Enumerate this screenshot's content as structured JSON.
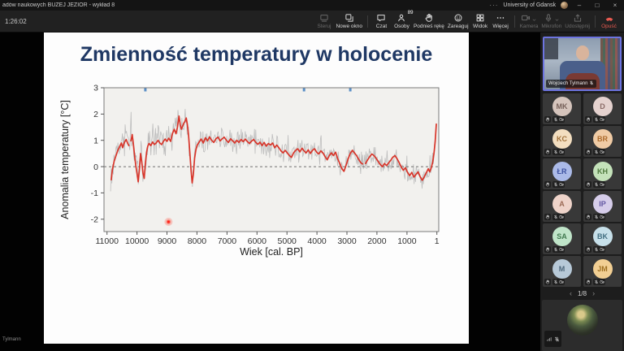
{
  "window": {
    "title": "adów naukowych BUŻEJ JEZIOR - wykład 8",
    "account": "University of Gdansk",
    "more": "···",
    "minimize": "–",
    "maximize": "□",
    "close": "×"
  },
  "toolbar": {
    "timer": "1:26:02",
    "groups": [
      {
        "items": [
          {
            "label": "Steruj",
            "icon": "remote",
            "disabled": true
          },
          {
            "label": "Nowe okno",
            "icon": "new-window"
          }
        ]
      },
      {
        "items": [
          {
            "label": "Czat",
            "icon": "chat"
          },
          {
            "label": "Osoby",
            "icon": "people",
            "badge": "89"
          },
          {
            "label": "Podnieś rękę",
            "icon": "hand"
          },
          {
            "label": "Zareaguj",
            "icon": "react"
          },
          {
            "label": "Widok",
            "icon": "grid"
          },
          {
            "label": "Więcej",
            "icon": "more"
          }
        ]
      },
      {
        "items": [
          {
            "label": "Kamera",
            "icon": "camera",
            "disabled": true,
            "chevron": true
          },
          {
            "label": "Mikrofon",
            "icon": "mic",
            "disabled": true,
            "chevron": true
          },
          {
            "label": "Udostępnij",
            "icon": "share",
            "disabled": true
          }
        ]
      },
      {
        "items": [
          {
            "label": "Opuść",
            "icon": "leave",
            "danger": true
          }
        ]
      }
    ]
  },
  "slide": {
    "title": "Zmienność temperatury w holocenie",
    "presenter_overlay": "Tylmann"
  },
  "chart_data": {
    "type": "line",
    "title": "Zmienność temperatury w holocenie",
    "xlabel": "Wiek [cal. BP]",
    "ylabel": "Anomalia temperatury [°C]",
    "x_ticks": [
      11000,
      10000,
      9000,
      8000,
      7000,
      6000,
      5000,
      4000,
      3000,
      2000,
      1000,
      1
    ],
    "x_range": [
      11100,
      -60
    ],
    "ylim": [
      -2.47,
      3
    ],
    "y_ticks": [
      3,
      2,
      1,
      0,
      -1,
      -2
    ],
    "zero_line_dashed": true,
    "grid": false,
    "legend": "none",
    "series": [
      {
        "name": "anomalia temperatury – rekonstrukcja wygładzona",
        "color": "#d8352a",
        "points": [
          [
            10860,
            -0.5
          ],
          [
            10820,
            -0.12
          ],
          [
            10760,
            0.22
          ],
          [
            10700,
            0.42
          ],
          [
            10640,
            0.62
          ],
          [
            10580,
            0.76
          ],
          [
            10520,
            0.9
          ],
          [
            10480,
            0.72
          ],
          [
            10440,
            0.86
          ],
          [
            10400,
            0.96
          ],
          [
            10360,
            1.03
          ],
          [
            10310,
            0.88
          ],
          [
            10270,
            0.8
          ],
          [
            10240,
            null
          ],
          [
            10200,
            0.98
          ],
          [
            10160,
            1.22
          ],
          [
            10120,
            0.85
          ],
          [
            10080,
            0.4
          ],
          [
            10040,
            0.05
          ],
          [
            10000,
            -0.25
          ],
          [
            9960,
            -0.58
          ],
          [
            9920,
            -0.1
          ],
          [
            9880,
            0.5
          ],
          [
            9840,
            0.18
          ],
          [
            9800,
            -0.25
          ],
          [
            9760,
            -0.45
          ],
          [
            9720,
            0.12
          ],
          [
            9680,
            0.55
          ],
          [
            9640,
            0.78
          ],
          [
            9600,
            0.88
          ],
          [
            9540,
            0.8
          ],
          [
            9480,
            0.94
          ],
          [
            9420,
            0.84
          ],
          [
            9360,
            0.9
          ],
          [
            9300,
            1.0
          ],
          [
            9240,
            0.9
          ],
          [
            9180,
            0.84
          ],
          [
            9120,
            0.96
          ],
          [
            9060,
            1.05
          ],
          [
            9000,
            0.96
          ],
          [
            8940,
            1.08
          ],
          [
            8880,
            0.96
          ],
          [
            8820,
            1.25
          ],
          [
            8760,
            1.42
          ],
          [
            8700,
            1.25
          ],
          [
            8650,
            1.5
          ],
          [
            8600,
            1.92
          ],
          [
            8560,
            1.6
          ],
          [
            8520,
            1.42
          ],
          [
            8480,
            1.53
          ],
          [
            8440,
            1.65
          ],
          [
            8400,
            1.72
          ],
          [
            8360,
            1.85
          ],
          [
            8320,
            1.6
          ],
          [
            8280,
            1.18
          ],
          [
            8240,
            0.55
          ],
          [
            8200,
            -0.12
          ],
          [
            8160,
            -0.62
          ],
          [
            8120,
            -0.28
          ],
          [
            8080,
            0.32
          ],
          [
            8040,
            0.62
          ],
          [
            8000,
            0.8
          ],
          [
            7930,
            0.93
          ],
          [
            7860,
            1.05
          ],
          [
            7790,
            0.9
          ],
          [
            7720,
            1.1
          ],
          [
            7650,
            0.98
          ],
          [
            7580,
            1.13
          ],
          [
            7510,
            1.0
          ],
          [
            7440,
            0.92
          ],
          [
            7370,
            1.06
          ],
          [
            7300,
            1.12
          ],
          [
            7230,
            0.98
          ],
          [
            7160,
            1.06
          ],
          [
            7090,
            1.12
          ],
          [
            7020,
            1.0
          ],
          [
            6950,
            0.92
          ],
          [
            6880,
            1.06
          ],
          [
            6810,
            0.98
          ],
          [
            6740,
            0.9
          ],
          [
            6670,
            1.0
          ],
          [
            6600,
            0.92
          ],
          [
            6530,
            1.03
          ],
          [
            6460,
            0.95
          ],
          [
            6390,
            1.05
          ],
          [
            6320,
            0.95
          ],
          [
            6250,
            0.88
          ],
          [
            6180,
            0.97
          ],
          [
            6110,
            1.03
          ],
          [
            6040,
            0.92
          ],
          [
            5970,
            0.85
          ],
          [
            5900,
            0.93
          ],
          [
            5830,
            0.8
          ],
          [
            5760,
            0.92
          ],
          [
            5690,
            0.78
          ],
          [
            5620,
            0.88
          ],
          [
            5550,
            0.82
          ],
          [
            5480,
            0.9
          ],
          [
            5410,
            0.72
          ],
          [
            5340,
            0.82
          ],
          [
            5270,
            0.72
          ],
          [
            5200,
            0.6
          ],
          [
            5130,
            0.52
          ],
          [
            5060,
            0.62
          ],
          [
            4990,
            0.52
          ],
          [
            4920,
            0.42
          ],
          [
            4850,
            0.35
          ],
          [
            4780,
            0.52
          ],
          [
            4710,
            0.62
          ],
          [
            4640,
            0.68
          ],
          [
            4570,
            0.56
          ],
          [
            4500,
            0.7
          ],
          [
            4430,
            0.6
          ],
          [
            4360,
            0.52
          ],
          [
            4290,
            0.64
          ],
          [
            4220,
            0.5
          ],
          [
            4150,
            0.62
          ],
          [
            4080,
            0.68
          ],
          [
            4010,
            0.55
          ],
          [
            3940,
            0.48
          ],
          [
            3870,
            0.6
          ],
          [
            3800,
            0.52
          ],
          [
            3730,
            0.38
          ],
          [
            3660,
            0.26
          ],
          [
            3590,
            0.42
          ],
          [
            3520,
            0.52
          ],
          [
            3450,
            0.42
          ],
          [
            3380,
            0.55
          ],
          [
            3310,
            0.3
          ],
          [
            3240,
            0.12
          ],
          [
            3170,
            -0.08
          ],
          [
            3100,
            -0.18
          ],
          [
            3030,
            0.05
          ],
          [
            2960,
            0.3
          ],
          [
            2890,
            0.5
          ],
          [
            2820,
            0.62
          ],
          [
            2750,
            0.52
          ],
          [
            2680,
            0.42
          ],
          [
            2610,
            0.28
          ],
          [
            2540,
            0.15
          ],
          [
            2480,
            0.1
          ],
          [
            2440,
            null
          ],
          [
            2380,
            0.12
          ],
          [
            2310,
            0.26
          ],
          [
            2240,
            0.38
          ],
          [
            2170,
            0.48
          ],
          [
            2100,
            0.42
          ],
          [
            2030,
            0.32
          ],
          [
            1960,
            0.2
          ],
          [
            1890,
            0.08
          ],
          [
            1820,
            0.0
          ],
          [
            1750,
            0.12
          ],
          [
            1680,
            0.04
          ],
          [
            1610,
            0.14
          ],
          [
            1540,
            0.24
          ],
          [
            1470,
            0.36
          ],
          [
            1400,
            0.42
          ],
          [
            1330,
            0.3
          ],
          [
            1260,
            0.15
          ],
          [
            1190,
            -0.02
          ],
          [
            1120,
            -0.14
          ],
          [
            1050,
            -0.04
          ],
          [
            980,
            -0.22
          ],
          [
            910,
            -0.34
          ],
          [
            840,
            -0.22
          ],
          [
            770,
            -0.4
          ],
          [
            700,
            -0.3
          ],
          [
            630,
            -0.2
          ],
          [
            560,
            -0.38
          ],
          [
            490,
            -0.52
          ],
          [
            420,
            -0.38
          ],
          [
            350,
            -0.22
          ],
          [
            290,
            -0.08
          ],
          [
            240,
            -0.2
          ],
          [
            190,
            -0.04
          ],
          [
            140,
            0.18
          ],
          [
            100,
            0.5
          ],
          [
            60,
            0.95
          ],
          [
            20,
            1.62
          ]
        ]
      },
      {
        "name": "niepewność rekonstrukcji / dane surowe (pasmo szare)",
        "color": "#bdbdbd",
        "type": "noise-band",
        "x_extent": [
          10880,
          20
        ],
        "halfwidth_gt8300": 0.8,
        "halfwidth_gt4500": 0.55,
        "halfwidth_else": 0.5
      }
    ],
    "top_marks": {
      "color": "#5b8fc7",
      "x": [
        9720,
        4430,
        2890
      ]
    },
    "laser_pointer": {
      "x": 8950,
      "y": -2.1,
      "color": "#ff2015"
    }
  },
  "sidebar": {
    "speaker": {
      "name": "Wojciech Tylmann",
      "muted": true
    },
    "participants": [
      {
        "initials": "MK",
        "bg": "#d5c4bc",
        "fg": "#77615a"
      },
      {
        "initials": "D",
        "bg": "#e5d2cf",
        "fg": "#8a6a66"
      },
      {
        "initials": "KC",
        "bg": "#f3dec0",
        "fg": "#a1713a"
      },
      {
        "initials": "BR",
        "bg": "#f0cba5",
        "fg": "#ad6a2b"
      },
      {
        "initials": "ŁR",
        "bg": "#abbae8",
        "fg": "#3d51a0"
      },
      {
        "initials": "KH",
        "bg": "#c4e2ba",
        "fg": "#4f7a3e"
      },
      {
        "initials": "A",
        "bg": "#eed3c9",
        "fg": "#9c6b56"
      },
      {
        "initials": "IP",
        "bg": "#d6cdea",
        "fg": "#6156a2"
      },
      {
        "initials": "SA",
        "bg": "#c0e5c9",
        "fg": "#40794f"
      },
      {
        "initials": "BK",
        "bg": "#c7e0ea",
        "fg": "#447083"
      },
      {
        "initials": "M",
        "bg": "#b7c9d8",
        "fg": "#4b6579"
      },
      {
        "initials": "JM",
        "bg": "#f2cf93",
        "fg": "#9e6f20"
      }
    ],
    "pagination": {
      "prev": "‹",
      "label": "1/8",
      "next": "›"
    },
    "selfview": {
      "muted": true
    }
  }
}
